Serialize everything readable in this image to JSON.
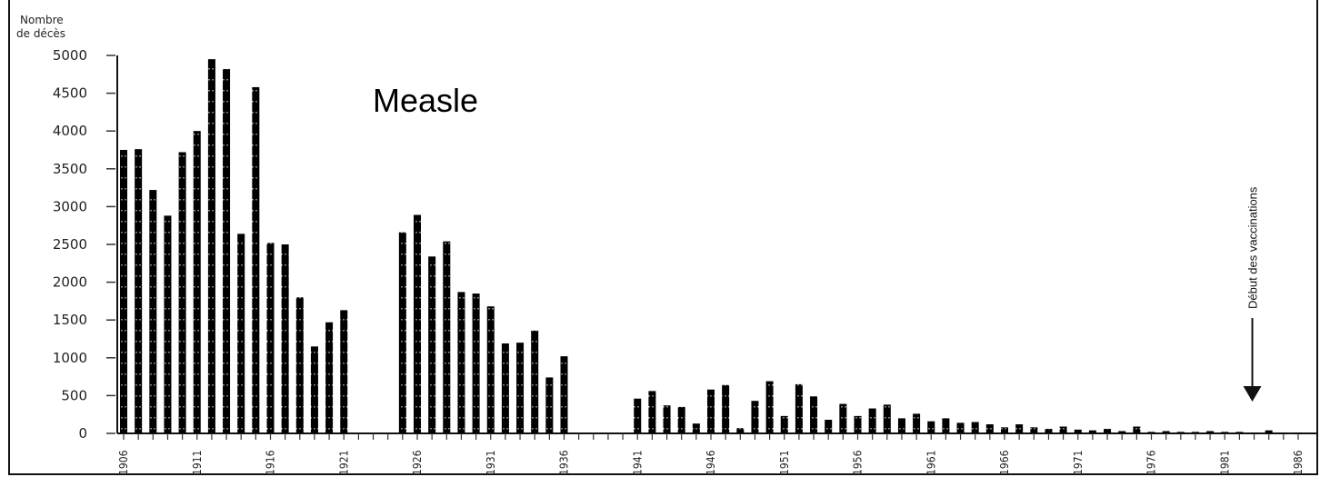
{
  "chart_data": {
    "type": "bar",
    "title": "Measle",
    "ylabel_line1": "Nombre",
    "ylabel_line2": "de décès",
    "ylim": [
      0,
      5000
    ],
    "yticks": [
      0,
      500,
      1000,
      1500,
      2000,
      2500,
      3000,
      3500,
      4000,
      4500,
      5000
    ],
    "xticks": [
      "1906",
      "1911",
      "1916",
      "1921",
      "1926",
      "1931",
      "1936",
      "1941",
      "1946",
      "1951",
      "1956",
      "1961",
      "1966",
      "1971",
      "1976",
      "1981",
      "1986"
    ],
    "x": [
      1906,
      1907,
      1908,
      1909,
      1910,
      1911,
      1912,
      1913,
      1914,
      1915,
      1916,
      1917,
      1918,
      1919,
      1920,
      1921,
      1922,
      1923,
      1924,
      1925,
      1926,
      1927,
      1928,
      1929,
      1930,
      1931,
      1932,
      1933,
      1934,
      1935,
      1936,
      1937,
      1938,
      1939,
      1940,
      1941,
      1942,
      1943,
      1944,
      1945,
      1946,
      1947,
      1948,
      1949,
      1950,
      1951,
      1952,
      1953,
      1954,
      1955,
      1956,
      1957,
      1958,
      1959,
      1960,
      1961,
      1962,
      1963,
      1964,
      1965,
      1966,
      1967,
      1968,
      1969,
      1970,
      1971,
      1972,
      1973,
      1974,
      1975,
      1976,
      1977,
      1978,
      1979,
      1980,
      1981,
      1982,
      1983,
      1984,
      1985,
      1986
    ],
    "values": [
      3750,
      3760,
      3220,
      2880,
      3720,
      4000,
      4950,
      4820,
      2640,
      4580,
      2520,
      2500,
      1800,
      1150,
      1470,
      1630,
      null,
      null,
      null,
      2660,
      2890,
      2340,
      2540,
      1870,
      1850,
      1680,
      1190,
      1200,
      1360,
      740,
      1020,
      null,
      null,
      null,
      null,
      460,
      560,
      370,
      350,
      130,
      580,
      640,
      70,
      430,
      690,
      230,
      650,
      490,
      180,
      390,
      230,
      330,
      380,
      200,
      260,
      160,
      200,
      140,
      150,
      120,
      80,
      120,
      80,
      60,
      90,
      50,
      40,
      60,
      30,
      90,
      20,
      30,
      20,
      20,
      30,
      20,
      20,
      10,
      40,
      10,
      10
    ],
    "annotation": "Début des vaccinations",
    "annotation_year": 1983
  }
}
